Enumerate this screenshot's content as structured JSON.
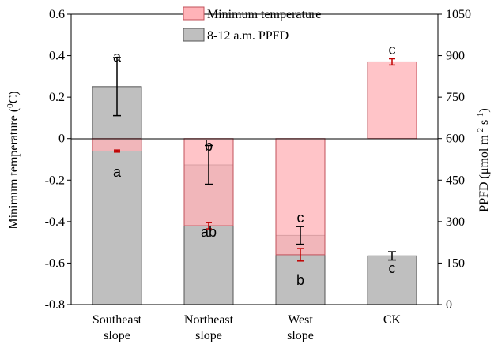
{
  "chart_data": {
    "type": "bar",
    "categories": [
      {
        "line1": "Southeast",
        "line2": "slope"
      },
      {
        "line1": "Northeast",
        "line2": "slope"
      },
      {
        "line1": "West",
        "line2": "slope"
      },
      {
        "line1": "CK",
        "line2": ""
      }
    ],
    "left_axis": {
      "label_main": "Minimum temperature (",
      "label_sup": "0",
      "label_end": "C)",
      "range": [
        -0.8,
        0.6
      ],
      "ticks": [
        "-0.8",
        "-0.6",
        "-0.4",
        "-0.2",
        "0",
        "0.2",
        "0.4",
        "0.6"
      ]
    },
    "right_axis": {
      "label_main": "PPFD (μmol m",
      "label_sup1": "-2",
      "label_mid": " s",
      "label_sup2": "-1",
      "label_end": ")",
      "range": [
        0,
        1050
      ],
      "ticks": [
        "0",
        "150",
        "300",
        "450",
        "600",
        "750",
        "900",
        "1050"
      ]
    },
    "series": [
      {
        "name": "8-12 a.m. PPFD",
        "axis": "right",
        "color": "#bfbfbf",
        "values": [
          788,
          505,
          250,
          176
        ],
        "errors": [
          105,
          70,
          32,
          15
        ],
        "letters": [
          "a",
          "ab",
          "b",
          "c"
        ]
      },
      {
        "name": "Minimum temperature",
        "axis": "left",
        "color": "#ffb3b8",
        "values": [
          -0.06,
          -0.42,
          -0.56,
          0.37
        ],
        "errors": [
          0.005,
          0.015,
          0.03,
          0.015
        ],
        "letters": [
          "a",
          "b",
          "c",
          "c"
        ]
      }
    ],
    "legend": {
      "position": "top-center"
    }
  }
}
